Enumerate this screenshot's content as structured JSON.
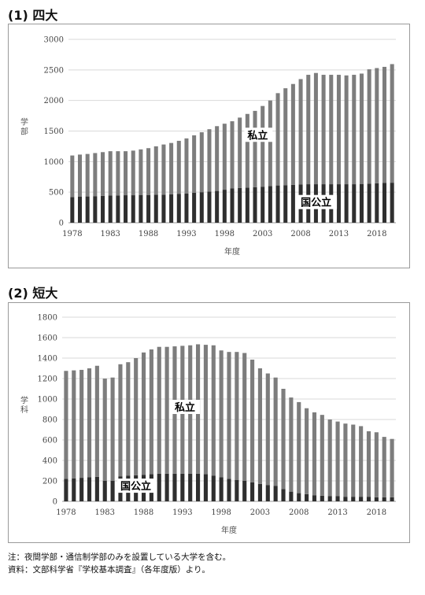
{
  "chart_data": [
    {
      "type": "bar",
      "stacked": true,
      "title": "(1) 四大",
      "xlabel": "年度",
      "ylabel": "学部",
      "ylim": [
        0,
        3000
      ],
      "yticks": [
        0,
        500,
        1000,
        1500,
        2000,
        2500,
        3000
      ],
      "xtick_labels": [
        "1978",
        "1983",
        "1988",
        "1993",
        "1998",
        "2003",
        "2008",
        "2013",
        "2018"
      ],
      "grid": true,
      "categories": [
        "1978",
        "1979",
        "1980",
        "1981",
        "1982",
        "1983",
        "1984",
        "1985",
        "1986",
        "1987",
        "1988",
        "1989",
        "1990",
        "1991",
        "1992",
        "1993",
        "1994",
        "1995",
        "1996",
        "1997",
        "1998",
        "1999",
        "2000",
        "2001",
        "2002",
        "2003",
        "2004",
        "2005",
        "2006",
        "2007",
        "2008",
        "2009",
        "2010",
        "2011",
        "2012",
        "2013",
        "2014",
        "2015",
        "2016",
        "2017",
        "2018",
        "2019",
        "2020"
      ],
      "series": [
        {
          "name": "国公立",
          "color": "#2f2f2f",
          "values": [
            420,
            425,
            430,
            435,
            440,
            445,
            445,
            450,
            450,
            455,
            455,
            460,
            460,
            465,
            470,
            480,
            490,
            500,
            510,
            520,
            540,
            560,
            570,
            575,
            580,
            590,
            600,
            610,
            615,
            620,
            625,
            630,
            630,
            630,
            630,
            630,
            630,
            630,
            635,
            640,
            645,
            650,
            655
          ]
        },
        {
          "name": "私立",
          "color": "#7d7d7d",
          "values": [
            680,
            690,
            695,
            705,
            715,
            725,
            725,
            720,
            730,
            745,
            765,
            790,
            820,
            840,
            870,
            900,
            940,
            980,
            1020,
            1060,
            1080,
            1100,
            1150,
            1205,
            1250,
            1320,
            1400,
            1510,
            1585,
            1650,
            1725,
            1790,
            1820,
            1790,
            1790,
            1790,
            1780,
            1790,
            1805,
            1870,
            1885,
            1900,
            1940
          ]
        }
      ],
      "annotations": [
        {
          "text": "私立",
          "x": "2001",
          "y": 1400
        },
        {
          "text": "国公立",
          "x": "2008",
          "y": 300
        }
      ]
    },
    {
      "type": "bar",
      "stacked": true,
      "title": "(2) 短大",
      "xlabel": "年度",
      "ylabel": "学科",
      "ylim": [
        0,
        1800
      ],
      "yticks": [
        0,
        200,
        400,
        600,
        800,
        1000,
        1200,
        1400,
        1600,
        1800
      ],
      "xtick_labels": [
        "1978",
        "1983",
        "1988",
        "1993",
        "1998",
        "2003",
        "2008",
        "2013",
        "2018"
      ],
      "grid": true,
      "categories": [
        "1978",
        "1979",
        "1980",
        "1981",
        "1982",
        "1983",
        "1984",
        "1985",
        "1986",
        "1987",
        "1988",
        "1989",
        "1990",
        "1991",
        "1992",
        "1993",
        "1994",
        "1995",
        "1996",
        "1997",
        "1998",
        "1999",
        "2000",
        "2001",
        "2002",
        "2003",
        "2004",
        "2005",
        "2006",
        "2007",
        "2008",
        "2009",
        "2010",
        "2011",
        "2012",
        "2013",
        "2014",
        "2015",
        "2016",
        "2017",
        "2018",
        "2019",
        "2020"
      ],
      "series": [
        {
          "name": "国公立",
          "color": "#2f2f2f",
          "values": [
            220,
            225,
            230,
            235,
            240,
            200,
            200,
            245,
            250,
            255,
            260,
            265,
            270,
            270,
            270,
            270,
            270,
            270,
            265,
            250,
            235,
            220,
            210,
            200,
            185,
            170,
            160,
            150,
            120,
            95,
            80,
            70,
            60,
            55,
            50,
            50,
            45,
            45,
            45,
            45,
            40,
            40,
            40
          ]
        },
        {
          "name": "私立",
          "color": "#7d7d7d",
          "values": [
            1055,
            1055,
            1055,
            1065,
            1085,
            1000,
            1010,
            1095,
            1110,
            1145,
            1195,
            1220,
            1240,
            1240,
            1245,
            1250,
            1255,
            1265,
            1265,
            1275,
            1240,
            1240,
            1250,
            1250,
            1200,
            1130,
            1090,
            1060,
            980,
            920,
            890,
            840,
            810,
            790,
            750,
            730,
            715,
            705,
            690,
            640,
            635,
            590,
            570
          ]
        }
      ],
      "annotations": [
        {
          "text": "私立",
          "x": "1992",
          "y": 900
        },
        {
          "text": "国公立",
          "x": "1985",
          "y": 130
        }
      ]
    }
  ],
  "sections": {
    "four_year_title": "(1) 四大",
    "junior_title": "(2) 短大"
  },
  "notes": {
    "note": "注：夜間学部・通信制学部のみを設置している大学を含む。",
    "source": "資料：文部科学省『学校基本調査』（各年度版）より。"
  }
}
